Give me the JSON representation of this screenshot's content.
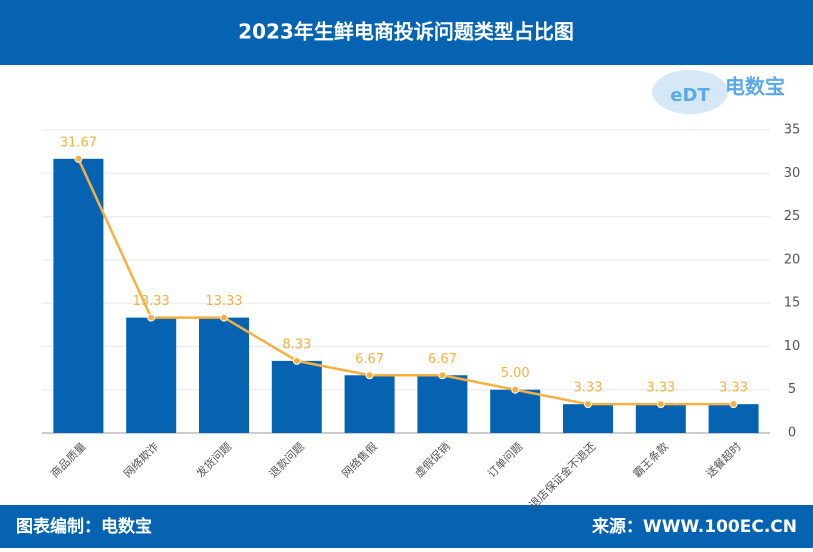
{
  "header": {
    "title": "2023年生鲜电商投诉问题类型占比图"
  },
  "logo": {
    "mark": "eDT",
    "name": "电数宝"
  },
  "footer": {
    "left": "图表编制：电数宝",
    "right": "来源：WWW.100EC.CN"
  },
  "chart_data": {
    "type": "bar-line",
    "categories": [
      "商品质量",
      "网络欺诈",
      "发货问题",
      "退款问题",
      "网络售假",
      "虚假促销",
      "订单问题",
      "退店保证金不退还",
      "霸王条款",
      "送餐超时"
    ],
    "series": [
      {
        "type": "bar",
        "color": "#0563b2",
        "values": [
          31.67,
          13.33,
          13.33,
          8.33,
          6.67,
          6.67,
          5,
          3.33,
          3.33,
          3.33
        ]
      },
      {
        "type": "line",
        "color": "#f5b041",
        "values": [
          31.67,
          13.33,
          13.33,
          8.33,
          6.67,
          6.67,
          5,
          3.33,
          3.33,
          3.33
        ],
        "value_labels": [
          "31.67",
          "13.33",
          "13.33",
          "8.33",
          "6.67",
          "6.67",
          "5.00",
          "3.33",
          "3.33",
          "3.33"
        ]
      }
    ],
    "ylim": [
      0,
      35
    ],
    "yticks": [
      0,
      5,
      10,
      15,
      20,
      25,
      30,
      35
    ],
    "grid": true
  }
}
